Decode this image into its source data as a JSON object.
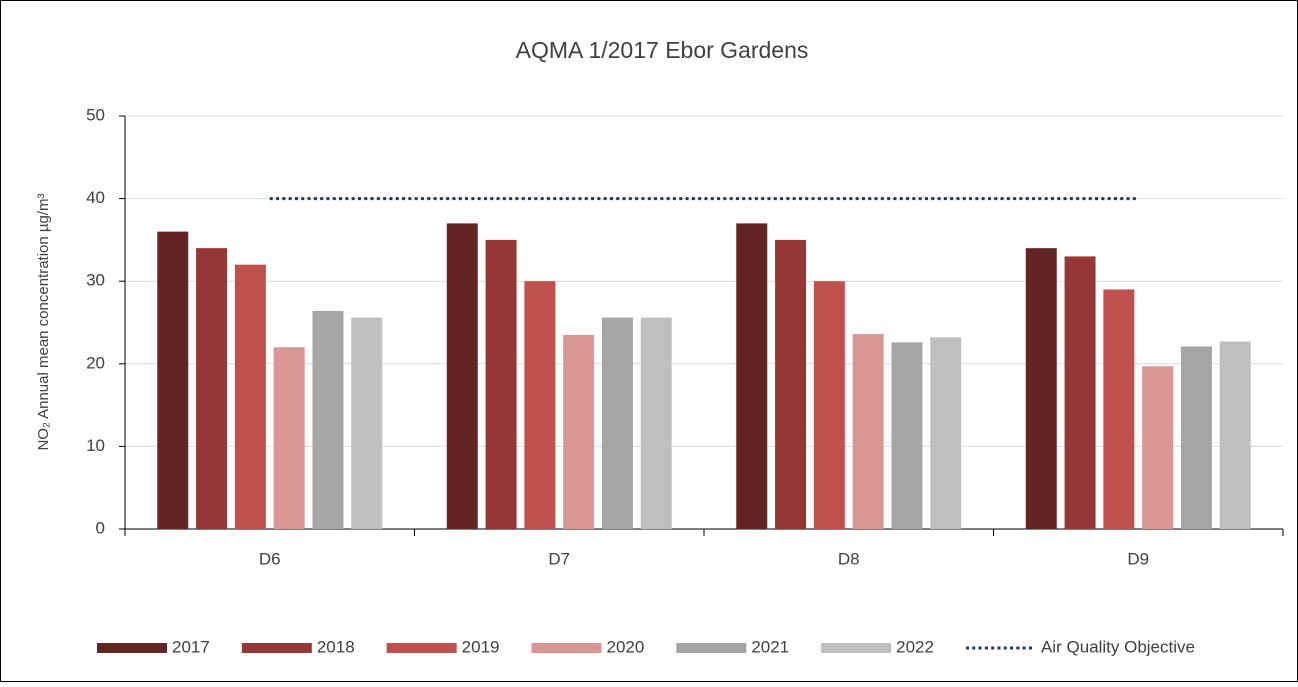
{
  "chart_data": {
    "type": "bar",
    "title": "AQMA 1/2017 Ebor Gardens",
    "ylabel": "NO₂ Annual mean concentration µg/m³",
    "categories": [
      "D6",
      "D7",
      "D8",
      "D9"
    ],
    "series": [
      {
        "name": "2017",
        "color": "#632523",
        "values": [
          36,
          37,
          37,
          34
        ]
      },
      {
        "name": "2018",
        "color": "#953735",
        "values": [
          34,
          35,
          35,
          33
        ]
      },
      {
        "name": "2019",
        "color": "#c0504d",
        "values": [
          32,
          30,
          30,
          29
        ]
      },
      {
        "name": "2020",
        "color": "#d99694",
        "values": [
          22,
          23.5,
          23.6,
          19.7
        ]
      },
      {
        "name": "2021",
        "color": "#a5a5a5",
        "values": [
          26.4,
          25.6,
          22.6,
          22.1
        ]
      },
      {
        "name": "2022",
        "color": "#bfbfbf",
        "values": [
          25.6,
          25.6,
          23.2,
          22.7
        ]
      },
      {
        "name": "Air Quality Objective",
        "type": "line",
        "style": "dotted",
        "color": "#1f3864",
        "values": [
          40,
          40,
          40,
          40
        ]
      }
    ],
    "ylim": [
      0,
      50
    ],
    "yticks": [
      0,
      10,
      20,
      30,
      40,
      50
    ],
    "grid": true,
    "legend": "bottom"
  }
}
